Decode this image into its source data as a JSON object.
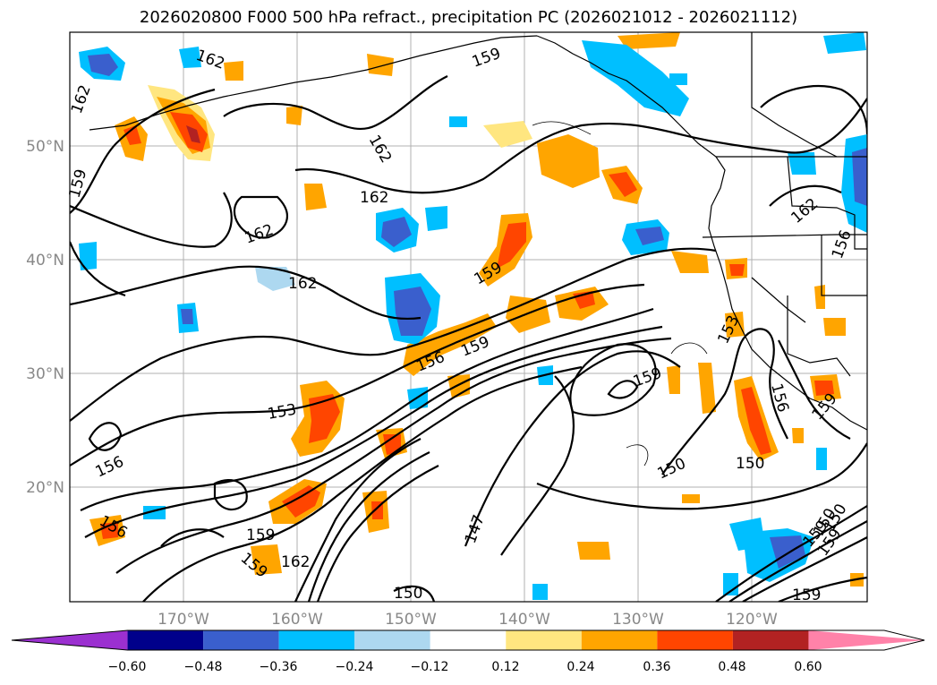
{
  "title": "2026020800 F000 500 hPa refract., precipitation PC (2026021012 - 2026021112)",
  "map": {
    "type": "contour map",
    "lat_labels": [
      "50°N",
      "40°N",
      "30°N",
      "20°N"
    ],
    "lon_labels": [
      "170°W",
      "160°W",
      "150°W",
      "140°W",
      "130°W",
      "120°W"
    ],
    "contour_labels": [
      "162",
      "162",
      "159",
      "162",
      "159",
      "162",
      "162",
      "162",
      "159",
      "162",
      "156",
      "156",
      "159",
      "153",
      "156",
      "159",
      "153",
      "159",
      "156",
      "150",
      "150",
      "156",
      "159",
      "147",
      "159",
      "162",
      "150",
      "159",
      "159",
      "150",
      "150",
      "159"
    ],
    "colors": {
      "land_line": "#000000",
      "grid": "#b0b0b0",
      "contour": "#000000"
    }
  },
  "colorbar": {
    "ticks": [
      "−0.60",
      "−0.48",
      "−0.36",
      "−0.24",
      "−0.12",
      "0.12",
      "0.24",
      "0.36",
      "0.48",
      "0.60"
    ],
    "colors": [
      "#9b30d0",
      "#00008b",
      "#3a5fcd",
      "#00bfff",
      "#add8f0",
      "#ffffff",
      "#ffe680",
      "#ffa500",
      "#ff4500",
      "#b22222",
      "#ff82a9"
    ]
  }
}
